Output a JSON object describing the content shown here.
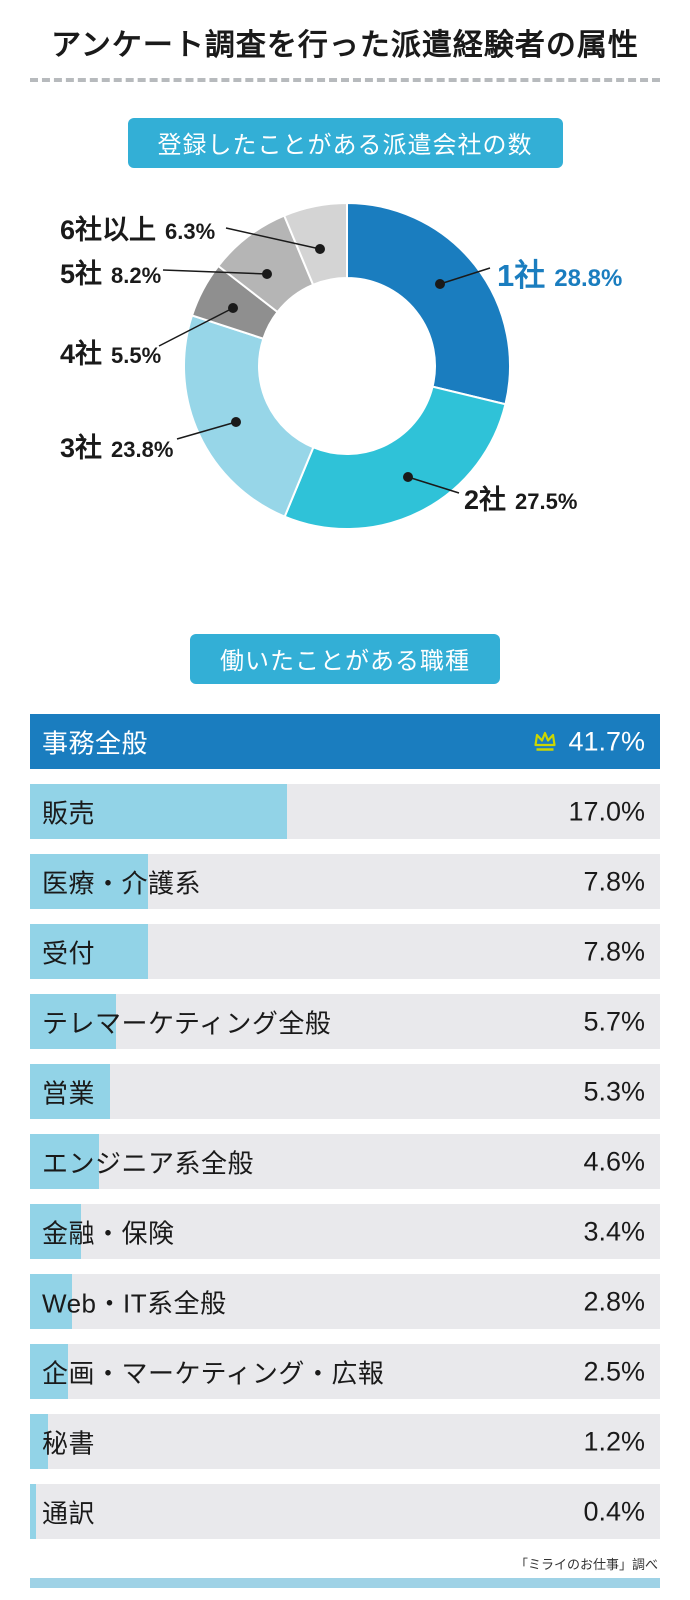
{
  "title": "アンケート調査を行った派遣経験者の属性",
  "source": "「ミライのお仕事」調べ",
  "donut_section": {
    "badge": "登録したことがある派遣会社の数"
  },
  "bar_section": {
    "badge": "働いたことがある職種"
  },
  "chart_data": [
    {
      "type": "pie",
      "style": "donut",
      "title": "登録したことがある派遣会社の数",
      "categories": [
        "1社",
        "2社",
        "3社",
        "4社",
        "5社",
        "6社以上"
      ],
      "values": [
        28.8,
        27.5,
        23.8,
        5.5,
        8.2,
        6.3
      ],
      "labels": [
        "28.8%",
        "27.5%",
        "23.8%",
        "5.5%",
        "8.2%",
        "6.3%"
      ],
      "colors": [
        "#1a7dbf",
        "#2fc2d8",
        "#97d6e8",
        "#8f8f8f",
        "#b5b5b5",
        "#d4d4d4"
      ],
      "start_angle_deg": 0,
      "clockwise": true,
      "legend_position": "callout-labels"
    },
    {
      "type": "bar",
      "orientation": "horizontal",
      "title": "働いたことがある職種",
      "categories": [
        "事務全般",
        "販売",
        "医療・介護系",
        "受付",
        "テレマーケティング全般",
        "営業",
        "エンジニア系全般",
        "金融・保険",
        "Web・IT系全般",
        "企画・マーケティング・広報",
        "秘書",
        "通訳"
      ],
      "values": [
        41.7,
        17.0,
        7.8,
        7.8,
        5.7,
        5.3,
        4.6,
        3.4,
        2.8,
        2.5,
        1.2,
        0.4
      ],
      "labels": [
        "41.7%",
        "17.0%",
        "7.8%",
        "7.8%",
        "5.7%",
        "5.3%",
        "4.6%",
        "3.4%",
        "2.8%",
        "2.5%",
        "1.2%",
        "0.4%"
      ],
      "xlim": [
        0,
        41.7
      ],
      "bar_color": "#92d3e7",
      "highlight_color": "#1a7dbf",
      "track_color": "#e9e9ec",
      "crown_on_first": true,
      "crown_color": "#ccd600"
    }
  ]
}
